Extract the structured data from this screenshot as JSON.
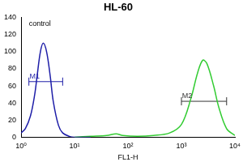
{
  "chart_data": {
    "type": "line",
    "title": "HL-60",
    "x_label": "FL1-H",
    "log": "x",
    "grid": false,
    "xlim": [
      1,
      10000
    ],
    "xticks": [
      {
        "value": 1,
        "label": "10⁰"
      },
      {
        "value": 10,
        "label": "10¹"
      },
      {
        "value": 100,
        "label": "10²"
      },
      {
        "value": 1000,
        "label": "10³"
      },
      {
        "value": 10000,
        "label": "10⁴"
      }
    ],
    "ylim": [
      0,
      140
    ],
    "yticks": [
      0,
      20,
      40,
      60,
      80,
      100,
      120,
      140
    ],
    "series": [
      {
        "color": "#1f1fa8",
        "x": [
          1,
          1.2,
          1.5,
          1.8,
          2,
          2.3,
          2.6,
          3,
          3.5,
          4,
          5,
          6,
          8,
          10,
          20
        ],
        "values": [
          5,
          10,
          25,
          50,
          72,
          100,
          110,
          100,
          72,
          42,
          14,
          5,
          1,
          0,
          0
        ]
      },
      {
        "color": "#33cc33",
        "x": [
          10,
          20,
          40,
          60,
          80,
          150,
          300,
          600,
          1000,
          1500,
          2000,
          2500,
          3000,
          4000,
          5000,
          7000,
          10000
        ],
        "values": [
          0,
          1,
          2,
          4,
          2,
          1,
          2,
          5,
          15,
          45,
          75,
          90,
          86,
          60,
          35,
          10,
          2
        ]
      }
    ],
    "gates": [
      {
        "label": "M1",
        "range": [
          1.4,
          6
        ],
        "y": 65,
        "color": "#1f1fa8"
      },
      {
        "label": "M2",
        "range": [
          1000,
          7000
        ],
        "y": 42,
        "color": "#333333"
      }
    ],
    "annotations": [
      {
        "text": "control",
        "x": 1.4,
        "y": 128
      }
    ]
  }
}
